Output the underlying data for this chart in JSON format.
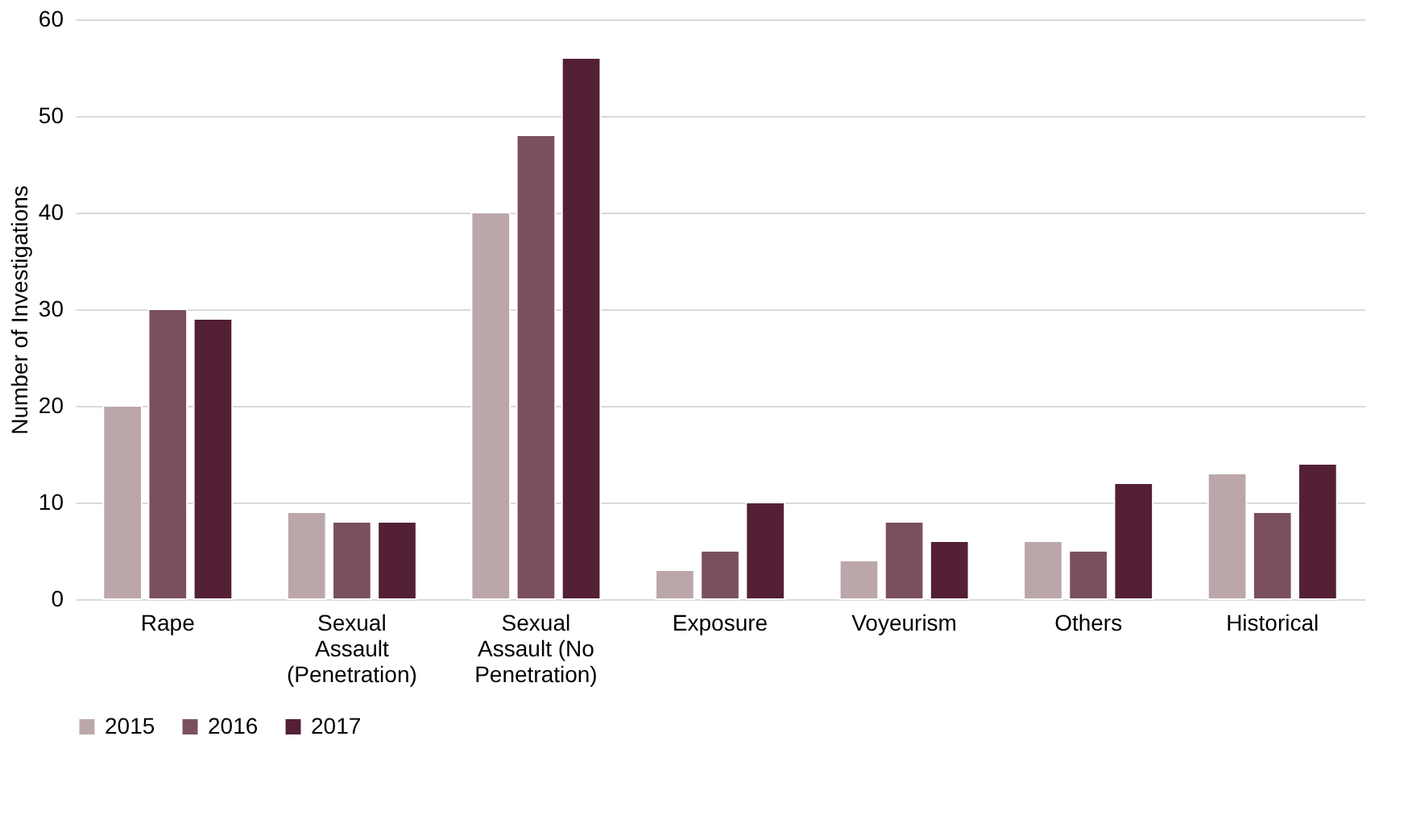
{
  "chart_data": {
    "type": "bar",
    "ylabel": "Number of Investigations",
    "categories": [
      "Rape",
      "Sexual Assault (Penetration)",
      "Sexual Assault (No Penetration)",
      "Exposure",
      "Voyeurism",
      "Others",
      "Historical"
    ],
    "series": [
      {
        "name": "2015",
        "color": "#bba7aa",
        "values": [
          20,
          9,
          40,
          3,
          4,
          6,
          13
        ]
      },
      {
        "name": "2016",
        "color": "#7a505c",
        "values": [
          30,
          8,
          48,
          5,
          8,
          5,
          9
        ]
      },
      {
        "name": "2017",
        "color": "#532036",
        "values": [
          29,
          8,
          56,
          10,
          6,
          12,
          14
        ]
      }
    ],
    "ylim": [
      0,
      60
    ],
    "yticks": [
      0,
      10,
      20,
      30,
      40,
      50,
      60
    ],
    "grid": "y",
    "legend": "bottom"
  }
}
